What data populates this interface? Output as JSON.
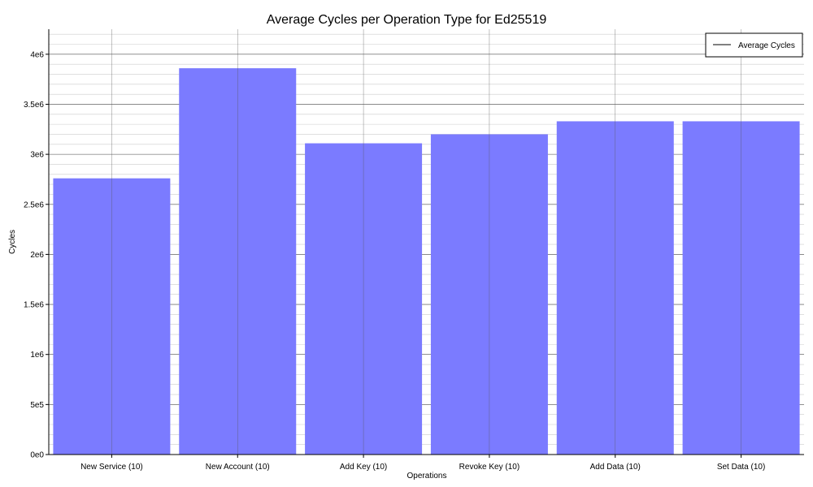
{
  "chart_data": {
    "type": "bar",
    "title": "Average Cycles per Operation Type for Ed25519",
    "xlabel": "Operations",
    "ylabel": "Cycles",
    "categories": [
      "New Service (10)",
      "New Account (10)",
      "Add Key (10)",
      "Revoke Key (10)",
      "Add Data (10)",
      "Set Data (10)"
    ],
    "series": [
      {
        "name": "Average Cycles",
        "values": [
          2760000,
          3860000,
          3110000,
          3200000,
          3330000,
          3330000
        ]
      }
    ],
    "ylim": [
      0,
      4250000
    ],
    "yticks": [
      0,
      500000,
      1000000,
      1500000,
      2000000,
      2500000,
      3000000,
      3500000,
      4000000
    ],
    "ytick_labels": [
      "0e0",
      "5e5",
      "1e6",
      "1.5e6",
      "2e6",
      "2.5e6",
      "3e6",
      "3.5e6",
      "4e6"
    ],
    "grid": true,
    "legend_position": "top-right",
    "colors": {
      "bar": "#7b7bff",
      "grid_major": "#555555",
      "grid_minor": "#cccccc",
      "axis": "#000000"
    }
  }
}
